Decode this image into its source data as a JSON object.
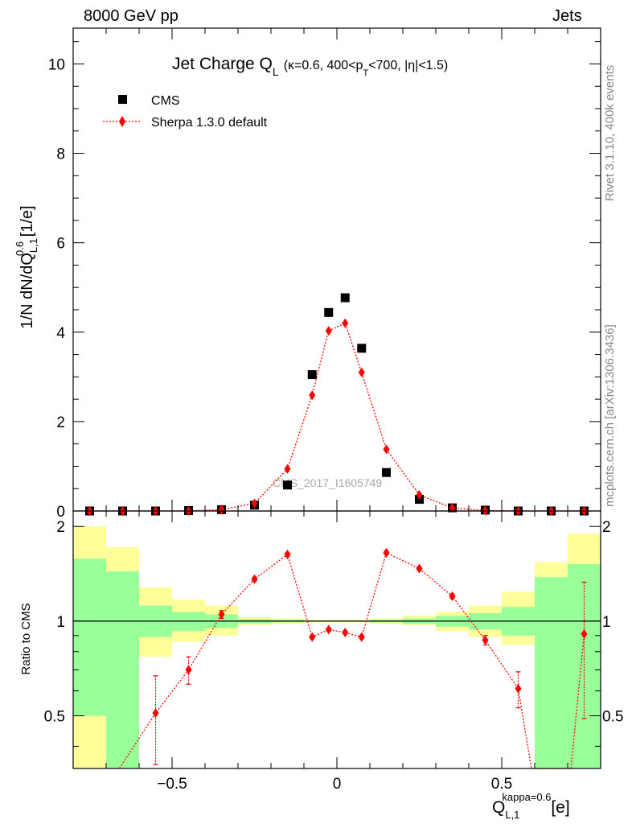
{
  "header": {
    "left": "8000 GeV pp",
    "right": "Jets"
  },
  "side": {
    "rivet": "Rivet 3.1.10,  400k events",
    "mcplots": "mcplots.cern.ch [arXiv:1306.3436]"
  },
  "colors": {
    "data": "#000000",
    "mc": "#ff0000",
    "band_inner": "#99ff99",
    "band_outer": "#ffff99"
  },
  "chart_data": [
    {
      "type": "scatter",
      "title_main": "Jet Charge Q",
      "title_sub": "L",
      "title_cond_a": "(κ=0.6, 400<p",
      "title_cond_sub": "T",
      "title_cond_b": "<700, |η|<1.5)",
      "ylabel_a": "1/N dN/dQ",
      "ylabel_sup": "0.6",
      "ylabel_sub": "L,1",
      "ylabel_b": " [1/e]",
      "watermark": "CMS_2017_I1605749",
      "xlim": [
        -0.8,
        0.8
      ],
      "ylim": [
        0,
        10.8
      ],
      "yticks": [
        0,
        2,
        4,
        6,
        8,
        10
      ],
      "yticklabels": [
        "0",
        "2",
        "4",
        "6",
        "8",
        "10"
      ],
      "legend": {
        "data": "CMS",
        "mc": "Sherpa 1.3.0 default",
        "placement": "top-left"
      },
      "x": [
        -0.75,
        -0.65,
        -0.55,
        -0.45,
        -0.35,
        -0.25,
        -0.15,
        -0.075,
        -0.025,
        0.025,
        0.075,
        0.15,
        0.25,
        0.35,
        0.45,
        0.55,
        0.65,
        0.75
      ],
      "series": [
        {
          "name": "CMS",
          "values": [
            0.0,
            0.0,
            0.0,
            0.01,
            0.03,
            0.13,
            0.58,
            3.05,
            4.44,
            4.77,
            3.64,
            0.86,
            0.26,
            0.07,
            0.02,
            0.0,
            0.0,
            0.0
          ]
        },
        {
          "name": "Sherpa 1.3.0 default",
          "values": [
            0.0,
            0.0,
            0.0,
            0.0,
            0.03,
            0.17,
            0.94,
            2.59,
            4.03,
            4.2,
            3.1,
            1.38,
            0.36,
            0.07,
            0.01,
            0.0,
            0.0,
            0.0
          ]
        }
      ]
    },
    {
      "type": "scatter",
      "ylabel": "Ratio to CMS",
      "xlabel_main": "Q",
      "xlabel_sup": "kappa=0.6",
      "xlabel_sub": "L,1",
      "xlabel_unit": " [e]",
      "xlim": [
        -0.8,
        0.8
      ],
      "ylim": [
        0.34,
        2.24
      ],
      "yticks": [
        0.5,
        1,
        2
      ],
      "yticklabels": [
        "0.5",
        "1",
        "2"
      ],
      "xticks": [
        -0.5,
        0,
        0.5
      ],
      "xticklabels": [
        "−0.5",
        "0",
        "0.5"
      ],
      "bins": [
        -0.8,
        -0.7,
        -0.6,
        -0.5,
        -0.4,
        -0.3,
        -0.2,
        -0.1,
        -0.05,
        0.0,
        0.05,
        0.1,
        0.2,
        0.3,
        0.4,
        0.5,
        0.6,
        0.7,
        0.8
      ],
      "band_inner": [
        [
          0.5,
          1.58
        ],
        [
          0.34,
          1.44
        ],
        [
          0.89,
          1.12
        ],
        [
          0.93,
          1.07
        ],
        [
          0.95,
          1.05
        ],
        [
          0.985,
          1.015
        ],
        [
          0.99,
          1.01
        ],
        [
          0.995,
          1.005
        ],
        [
          0.996,
          1.004
        ],
        [
          0.996,
          1.004
        ],
        [
          0.995,
          1.005
        ],
        [
          0.99,
          1.01
        ],
        [
          0.98,
          1.02
        ],
        [
          0.96,
          1.04
        ],
        [
          0.94,
          1.06
        ],
        [
          0.9,
          1.11
        ],
        [
          0.34,
          1.38
        ],
        [
          0.34,
          1.52
        ]
      ],
      "band_outer": [
        [
          0.34,
          2.0
        ],
        [
          0.34,
          1.72
        ],
        [
          0.77,
          1.28
        ],
        [
          0.86,
          1.17
        ],
        [
          0.9,
          1.12
        ],
        [
          0.97,
          1.03
        ],
        [
          0.98,
          1.02
        ],
        [
          0.99,
          1.01
        ],
        [
          0.99,
          1.01
        ],
        [
          0.99,
          1.01
        ],
        [
          0.99,
          1.01
        ],
        [
          0.98,
          1.02
        ],
        [
          0.97,
          1.04
        ],
        [
          0.93,
          1.07
        ],
        [
          0.89,
          1.12
        ],
        [
          0.84,
          1.24
        ],
        [
          0.34,
          1.54
        ],
        [
          0.34,
          1.9
        ]
      ],
      "ratio_x": [
        -0.55,
        -0.45,
        -0.35,
        -0.25,
        -0.15,
        -0.075,
        -0.025,
        0.025,
        0.075,
        0.15,
        0.25,
        0.35,
        0.45,
        0.55,
        0.75
      ],
      "ratio_y": [
        0.51,
        0.7,
        1.05,
        1.36,
        1.63,
        0.89,
        0.94,
        0.92,
        0.89,
        1.65,
        1.47,
        1.2,
        0.87,
        0.61,
        0.91
      ],
      "ratio_err": [
        0.16,
        0.07,
        0.03,
        0.02,
        0.02,
        0.01,
        0.01,
        0.01,
        0.01,
        0.02,
        0.02,
        0.02,
        0.03,
        0.08,
        0.42
      ],
      "line_x": [
        -0.66,
        -0.55,
        -0.45,
        -0.35,
        -0.25,
        -0.15,
        -0.075,
        -0.025,
        0.025,
        0.075,
        0.15,
        0.25,
        0.35,
        0.45,
        0.55,
        0.59,
        0.71,
        0.75
      ],
      "line_y": [
        0.34,
        0.51,
        0.7,
        1.05,
        1.36,
        1.63,
        0.89,
        0.94,
        0.92,
        0.89,
        1.65,
        1.47,
        1.2,
        0.87,
        0.61,
        0.34,
        0.34,
        0.91
      ]
    }
  ]
}
